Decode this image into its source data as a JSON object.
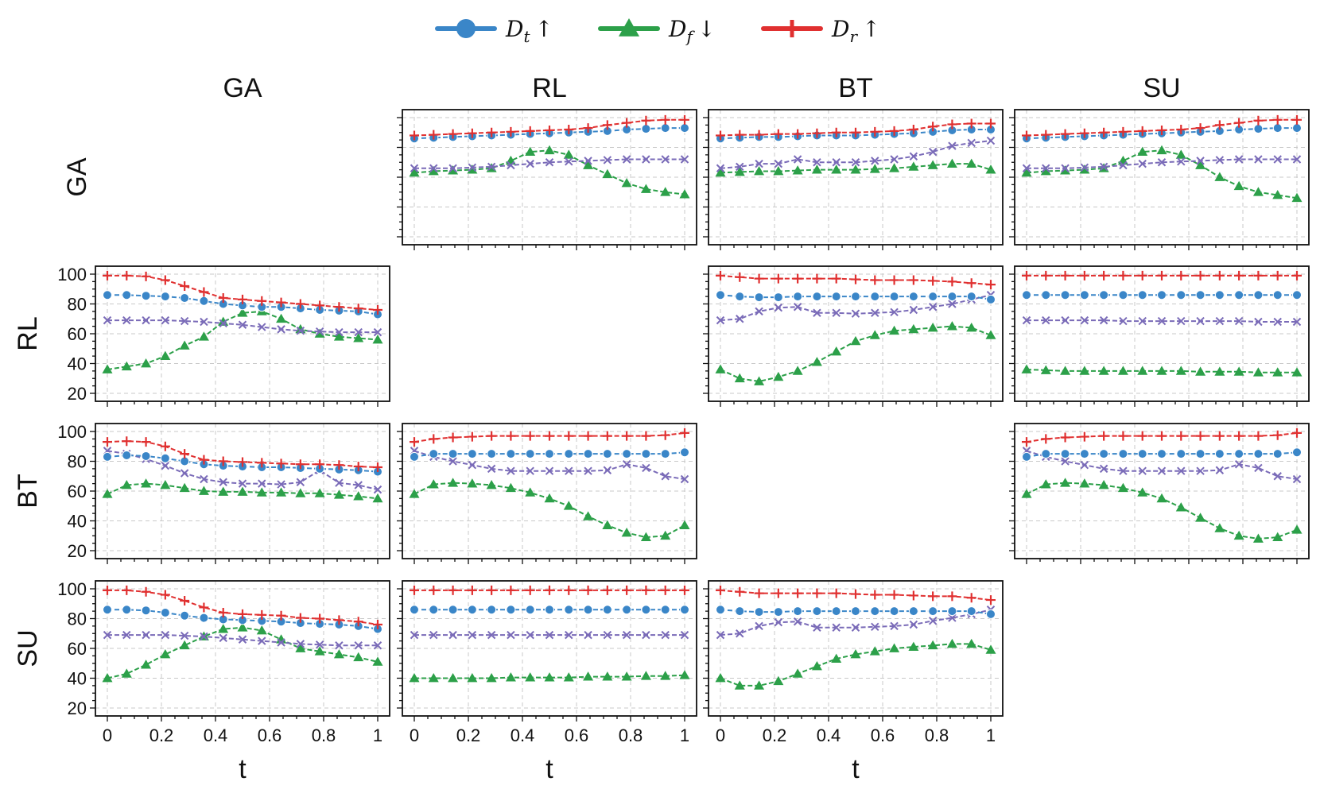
{
  "chart_data": {
    "type": "line",
    "layout": "4x4 grid of line subplots; rows = row method, columns = column method; diagonal panels empty",
    "column_headers": [
      "GA",
      "RL",
      "BT",
      "SU"
    ],
    "row_headers": [
      "GA",
      "RL",
      "BT",
      "SU"
    ],
    "xlabel": "t",
    "xlim": [
      0,
      1
    ],
    "ylim": [
      20,
      100
    ],
    "x_ticks": [
      "0",
      "0.2",
      "0.4",
      "0.6",
      "0.8",
      "1"
    ],
    "y_ticks": [
      "20",
      "40",
      "60",
      "80",
      "100"
    ],
    "grid": true,
    "legend": {
      "placement": "top-center",
      "entries": [
        {
          "label": "D",
          "sub": "t",
          "arrow": "↑",
          "color": "#3a86c8",
          "marker": "circle"
        },
        {
          "label": "D",
          "sub": "f",
          "arrow": "↓",
          "color": "#2ca049",
          "marker": "triangle"
        },
        {
          "label": "D",
          "sub": "r",
          "arrow": "↑",
          "color": "#e03030",
          "marker": "plus"
        }
      ]
    },
    "series_style": {
      "Dt": {
        "color": "#3a86c8",
        "marker": "circle"
      },
      "Df": {
        "color": "#2ca049",
        "marker": "triangle"
      },
      "Dr": {
        "color": "#e03030",
        "marker": "plus"
      },
      "X": {
        "color": "#7a6bb8",
        "marker": "x"
      }
    },
    "x": [
      0,
      0.0714,
      0.1429,
      0.2143,
      0.2857,
      0.3571,
      0.4286,
      0.5,
      0.5714,
      0.6429,
      0.7143,
      0.7857,
      0.8571,
      0.9286,
      1.0
    ],
    "panels": [
      {
        "row": "GA",
        "col": "RL",
        "ytick_labels": false,
        "series": {
          "Dt": [
            86,
            86.5,
            87,
            87.5,
            88,
            88.5,
            89,
            89.5,
            90,
            90.5,
            91,
            92,
            92.5,
            93,
            93
          ],
          "Df": [
            63,
            64,
            64.5,
            65,
            66,
            71,
            77,
            78,
            75,
            68,
            62,
            56,
            52,
            50,
            48.5
          ],
          "Dr": [
            88,
            88.5,
            89,
            89.5,
            90,
            90.5,
            91,
            91.5,
            92,
            93,
            95,
            96.5,
            98,
            98.5,
            98.5
          ],
          "X": [
            66,
            66,
            66,
            66.5,
            67,
            68,
            69,
            70,
            70.5,
            71,
            71.5,
            72,
            72,
            72,
            72
          ]
        }
      },
      {
        "row": "GA",
        "col": "BT",
        "ytick_labels": false,
        "series": {
          "Dt": [
            86,
            86.5,
            87,
            87,
            87.5,
            88,
            88,
            88,
            88.5,
            89,
            89.5,
            90.5,
            91.5,
            92,
            92
          ],
          "Df": [
            63,
            63.5,
            64,
            64,
            64.5,
            65,
            65,
            65,
            65.5,
            66,
            67,
            68,
            69,
            69,
            65
          ],
          "Dr": [
            88,
            88.5,
            88.5,
            89,
            89,
            89.5,
            90,
            90,
            90.5,
            91,
            92,
            94,
            95.5,
            96,
            96
          ],
          "X": [
            66,
            67,
            69,
            69,
            72,
            70,
            70,
            70,
            71,
            72,
            74,
            77,
            81,
            83,
            84.5
          ]
        }
      },
      {
        "row": "GA",
        "col": "SU",
        "ytick_labels": false,
        "series": {
          "Dt": [
            86,
            86.5,
            87,
            87.5,
            88,
            88.5,
            89,
            89.5,
            90,
            90.5,
            91,
            92,
            92.5,
            93,
            93
          ],
          "Df": [
            63,
            64,
            64.5,
            65,
            66,
            71,
            77,
            78,
            75,
            68,
            60,
            54,
            50,
            48,
            46
          ],
          "Dr": [
            88,
            88.5,
            89,
            89.5,
            90,
            90.5,
            91,
            91.5,
            92,
            93,
            95,
            96.5,
            98,
            98.5,
            98.5
          ],
          "X": [
            66,
            66,
            66,
            66.5,
            67,
            68,
            69,
            70,
            70.5,
            71,
            71.5,
            72,
            72,
            72,
            72
          ]
        }
      },
      {
        "row": "RL",
        "col": "GA",
        "ytick_labels": true,
        "series": {
          "Dt": [
            86,
            86,
            85.5,
            85,
            84,
            82,
            80,
            79,
            78,
            78,
            77,
            76,
            75.5,
            75,
            73
          ],
          "Df": [
            36,
            38,
            40,
            45,
            52,
            58,
            68,
            74,
            75,
            70,
            63,
            60,
            58,
            57,
            56
          ],
          "Dr": [
            99,
            99,
            98.5,
            96,
            92,
            88,
            84,
            83,
            82,
            81,
            80,
            79,
            78,
            77,
            76
          ],
          "X": [
            69,
            69,
            69,
            69,
            68.5,
            68,
            67,
            66,
            64.5,
            63,
            62,
            61.5,
            61,
            61,
            61
          ]
        }
      },
      {
        "row": "RL",
        "col": "BT",
        "ytick_labels": false,
        "series": {
          "Dt": [
            86,
            85,
            84.5,
            84.5,
            85,
            85,
            85,
            85,
            85,
            85,
            85,
            85,
            85,
            85,
            83
          ],
          "Df": [
            36,
            30,
            28,
            31,
            35,
            41,
            48,
            55,
            59,
            62,
            63,
            64,
            65,
            64,
            59
          ],
          "Dr": [
            99,
            98,
            97,
            97,
            97,
            97,
            97,
            96.5,
            96,
            96,
            96,
            95.5,
            95,
            94,
            93
          ],
          "X": [
            69,
            70,
            75,
            77.5,
            78,
            74,
            74,
            73.5,
            74,
            74.5,
            76,
            78,
            80,
            83,
            86
          ]
        }
      },
      {
        "row": "RL",
        "col": "SU",
        "ytick_labels": false,
        "series": {
          "Dt": [
            86,
            86,
            86,
            86,
            86,
            86,
            86,
            86,
            86,
            86,
            86,
            86,
            86,
            86,
            86
          ],
          "Df": [
            36,
            35.5,
            35,
            35,
            35,
            35,
            35,
            35,
            35,
            34.5,
            34.5,
            34.5,
            34,
            34,
            34
          ],
          "Dr": [
            99,
            99,
            99,
            99,
            99,
            99,
            99,
            99,
            99,
            99,
            99,
            99,
            99,
            99,
            99
          ],
          "X": [
            69,
            69,
            69,
            69,
            69,
            68.5,
            68.5,
            68.5,
            68.5,
            68.5,
            68.5,
            68.5,
            68,
            68,
            68
          ]
        }
      },
      {
        "row": "BT",
        "col": "GA",
        "ytick_labels": true,
        "series": {
          "Dt": [
            83,
            84,
            83.5,
            82,
            80,
            78,
            77,
            76.5,
            76,
            76,
            75.5,
            75,
            74.5,
            74,
            73
          ],
          "Df": [
            58,
            64,
            65,
            64,
            62,
            60,
            59.5,
            59.5,
            59,
            59,
            58.5,
            58.5,
            57.5,
            56.5,
            55
          ],
          "Dr": [
            93,
            93.5,
            93,
            90,
            85,
            81,
            80,
            79.5,
            79,
            78.5,
            78,
            78,
            77.5,
            76.5,
            76
          ],
          "X": [
            87,
            85,
            81.5,
            77,
            72,
            68,
            66,
            65,
            65,
            64.5,
            66,
            74,
            65.5,
            64,
            61
          ]
        }
      },
      {
        "row": "BT",
        "col": "RL",
        "ytick_labels": false,
        "series": {
          "Dt": [
            83,
            85,
            85,
            85,
            85,
            85,
            85,
            85,
            85,
            85,
            85,
            85,
            85,
            85,
            86
          ],
          "Df": [
            58,
            64.5,
            65.5,
            65,
            64,
            62,
            59,
            55,
            50,
            43,
            37,
            32,
            29,
            30,
            37
          ],
          "Dr": [
            93,
            95,
            96,
            96.5,
            97,
            97,
            97,
            97,
            97,
            97,
            97,
            97,
            97,
            97.5,
            99
          ],
          "X": [
            87,
            83,
            80,
            77.5,
            75,
            73.5,
            73.5,
            73.5,
            73.5,
            73.5,
            74,
            78,
            75.5,
            70,
            68
          ]
        }
      },
      {
        "row": "BT",
        "col": "SU",
        "ytick_labels": false,
        "series": {
          "Dt": [
            83,
            85,
            85,
            85,
            85,
            85,
            85,
            85,
            85,
            85,
            85,
            85,
            85,
            85,
            86
          ],
          "Df": [
            58,
            64.5,
            65.5,
            65,
            64,
            62,
            59,
            55,
            49,
            42,
            35,
            30,
            28,
            29,
            34
          ],
          "Dr": [
            93,
            95,
            96,
            96.5,
            97,
            97,
            97,
            97,
            97,
            97,
            97,
            97,
            97,
            97.5,
            99
          ],
          "X": [
            87,
            83,
            80,
            77.5,
            75,
            73.5,
            73.5,
            73.5,
            73.5,
            73.5,
            74,
            78,
            75.5,
            70,
            68
          ]
        }
      },
      {
        "row": "SU",
        "col": "GA",
        "ytick_labels": true,
        "series": {
          "Dt": [
            86,
            86,
            85.5,
            84,
            82,
            80.5,
            79.5,
            79,
            78.5,
            78,
            77,
            76.5,
            76,
            75,
            73
          ],
          "Df": [
            40,
            43,
            49,
            56,
            62,
            68,
            73,
            74,
            72,
            66,
            60,
            58,
            56,
            54,
            51
          ],
          "Dr": [
            99,
            99,
            98,
            96,
            92,
            87.5,
            84,
            83,
            82.5,
            82,
            80.5,
            80,
            79,
            78,
            76
          ],
          "X": [
            69,
            69,
            69,
            69,
            68.5,
            68,
            67,
            66,
            65,
            64,
            63,
            62.5,
            62,
            62,
            62
          ]
        }
      },
      {
        "row": "SU",
        "col": "RL",
        "ytick_labels": false,
        "series": {
          "Dt": [
            86,
            86,
            86,
            86,
            86,
            86,
            86,
            86,
            86,
            86,
            86,
            86,
            86,
            86,
            86
          ],
          "Df": [
            40,
            40,
            40,
            40,
            40,
            40.5,
            40.5,
            40.5,
            40.5,
            41,
            41,
            41,
            41.5,
            41.5,
            42
          ],
          "Dr": [
            99,
            99,
            99,
            99,
            99,
            99,
            99,
            99,
            99,
            99,
            99,
            99,
            99,
            99,
            99
          ],
          "X": [
            69,
            69,
            69,
            69,
            69,
            69,
            69,
            69,
            69,
            69,
            69,
            69,
            69,
            69,
            69
          ]
        }
      },
      {
        "row": "SU",
        "col": "BT",
        "ytick_labels": false,
        "series": {
          "Dt": [
            86,
            85,
            84.5,
            84.5,
            85,
            85,
            85,
            85,
            85,
            85,
            85,
            85,
            85,
            85,
            83
          ],
          "Df": [
            40,
            35,
            35,
            38,
            43,
            48,
            53,
            56,
            58,
            60,
            61,
            62,
            63,
            63,
            59
          ],
          "Dr": [
            99,
            98,
            97,
            97,
            97,
            97,
            97,
            96.5,
            96,
            96,
            95.5,
            95,
            95,
            94,
            92.5
          ],
          "X": [
            69,
            70,
            75,
            77.5,
            78,
            74,
            74,
            74,
            74.5,
            75,
            76,
            78.5,
            80.5,
            83,
            86
          ]
        }
      }
    ]
  }
}
